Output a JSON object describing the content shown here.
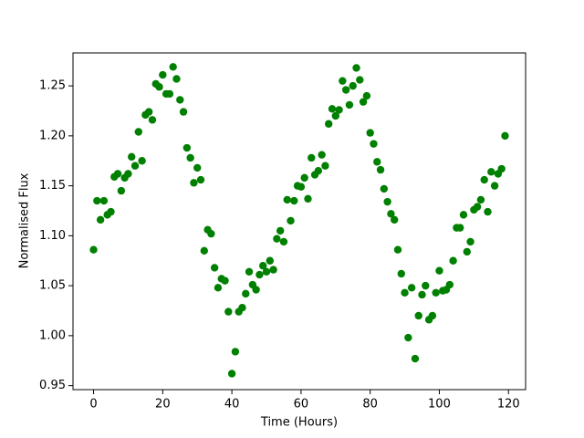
{
  "chart_data": {
    "type": "scatter",
    "xlabel": "Time (Hours)",
    "ylabel": "Normalised Flux",
    "color": "#008000",
    "x": [
      0,
      1,
      2,
      3,
      4,
      5,
      6,
      7,
      8,
      9,
      10,
      11,
      12,
      13,
      14,
      15,
      16,
      17,
      18,
      19,
      20,
      21,
      22,
      23,
      24,
      25,
      26,
      27,
      28,
      29,
      30,
      31,
      32,
      33,
      34,
      35,
      36,
      37,
      38,
      39,
      40,
      41,
      42,
      43,
      44,
      45,
      46,
      47,
      48,
      49,
      50,
      51,
      52,
      53,
      54,
      55,
      56,
      57,
      58,
      59,
      60,
      61,
      62,
      63,
      64,
      65,
      66,
      67,
      68,
      69,
      70,
      71,
      72,
      73,
      74,
      75,
      76,
      77,
      78,
      79,
      80,
      81,
      82,
      83,
      84,
      85,
      86,
      87,
      88,
      89,
      90,
      91,
      92,
      93,
      94,
      95,
      96,
      97,
      98,
      99,
      100,
      101,
      102,
      103,
      104,
      105,
      106,
      107,
      108,
      109,
      110,
      111,
      112,
      113,
      114,
      115,
      116,
      117,
      118,
      119
    ],
    "values": [
      1.086,
      1.135,
      1.116,
      1.135,
      1.121,
      1.124,
      1.159,
      1.162,
      1.145,
      1.158,
      1.162,
      1.179,
      1.17,
      1.204,
      1.175,
      1.221,
      1.224,
      1.216,
      1.252,
      1.249,
      1.261,
      1.242,
      1.242,
      1.269,
      1.257,
      1.236,
      1.224,
      1.188,
      1.178,
      1.153,
      1.168,
      1.156,
      1.085,
      1.106,
      1.102,
      1.068,
      1.048,
      1.057,
      1.055,
      1.024,
      0.962,
      0.984,
      1.024,
      1.028,
      1.042,
      1.064,
      1.051,
      1.046,
      1.061,
      1.07,
      1.064,
      1.075,
      1.066,
      1.097,
      1.105,
      1.094,
      1.136,
      1.115,
      1.135,
      1.15,
      1.149,
      1.158,
      1.137,
      1.178,
      1.161,
      1.165,
      1.181,
      1.17,
      1.212,
      1.227,
      1.22,
      1.226,
      1.255,
      1.246,
      1.231,
      1.25,
      1.268,
      1.256,
      1.234,
      1.24,
      1.203,
      1.192,
      1.174,
      1.166,
      1.147,
      1.134,
      1.122,
      1.116,
      1.086,
      1.062,
      1.043,
      0.998,
      1.048,
      0.977,
      1.02,
      1.041,
      1.05,
      1.016,
      1.02,
      1.043,
      1.065,
      1.045,
      1.046,
      1.051,
      1.075,
      1.108,
      1.108,
      1.121,
      1.084,
      1.094,
      1.126,
      1.129,
      1.136,
      1.156,
      1.124,
      1.164,
      1.15,
      1.162,
      1.167,
      1.2
    ],
    "xlim": [
      -5.95,
      124.95
    ],
    "ylim": [
      0.946,
      1.283
    ],
    "xticks": [
      0,
      20,
      40,
      60,
      80,
      100,
      120
    ],
    "yticks": [
      0.95,
      {
        "value": 1.0,
        "label": "1.00"
      },
      1.05,
      {
        "value": 1.1,
        "label": "1.10"
      },
      1.15,
      {
        "value": 1.2,
        "label": "1.20"
      },
      1.25
    ],
    "grid": false
  }
}
